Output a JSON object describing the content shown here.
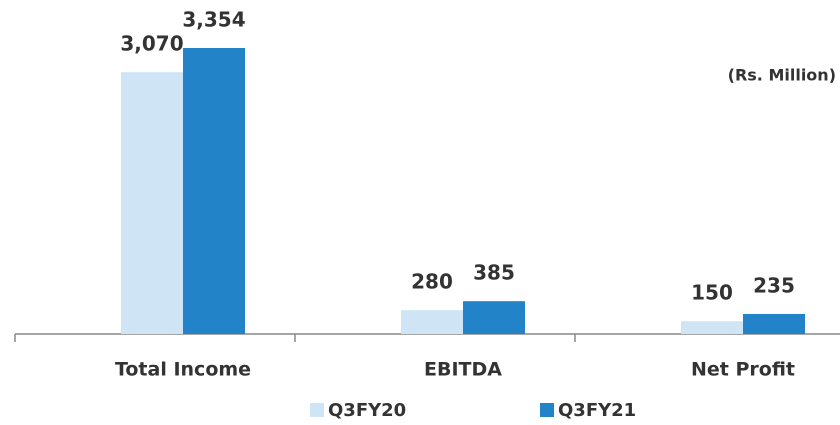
{
  "chart_data": {
    "type": "bar",
    "annotation": "(Rs. Million)",
    "categories": [
      "Total Income",
      "EBITDA",
      "Net Profit"
    ],
    "series": [
      {
        "name": "Q3FY20",
        "color": "#cfe5f5",
        "values": [
          3070,
          280,
          150
        ],
        "value_labels": [
          "3,070",
          "280",
          "150"
        ]
      },
      {
        "name": "Q3FY21",
        "color": "#2283c8",
        "values": [
          3354,
          385,
          235
        ],
        "value_labels": [
          "3,354",
          "385",
          "235"
        ]
      }
    ],
    "legend": "bottom"
  }
}
